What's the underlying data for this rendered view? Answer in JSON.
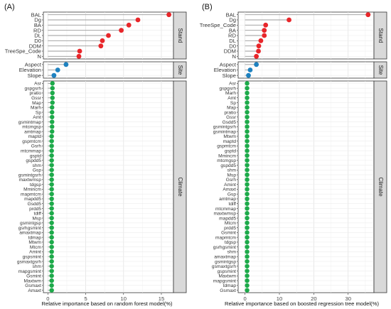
{
  "chart_data": [
    {
      "type": "scatter",
      "title": "(A)",
      "xlabel": "Relative importance based on random forest model(%)",
      "ylabel": "",
      "xlim": [
        -0.6,
        16.6
      ],
      "xticks": [
        0,
        5,
        10,
        15
      ],
      "grid": true,
      "panels": [
        {
          "name": "Stand",
          "color": "#e8262a",
          "points": [
            {
              "label": "BAL",
              "value": 16.0
            },
            {
              "label": "Dg",
              "value": 11.9
            },
            {
              "label": "BA",
              "value": 10.7
            },
            {
              "label": "RD",
              "value": 9.7
            },
            {
              "label": "DL",
              "value": 8.0
            },
            {
              "label": "D0",
              "value": 7.2
            },
            {
              "label": "DDM",
              "value": 7.0
            },
            {
              "label": "TreeSpe_Code",
              "value": 4.2
            },
            {
              "label": "N",
              "value": 4.1
            }
          ]
        },
        {
          "name": "Site",
          "color": "#1f82c0",
          "points": [
            {
              "label": "Aspect",
              "value": 2.4
            },
            {
              "label": "Elevation",
              "value": 1.3
            },
            {
              "label": "Slope",
              "value": 0.8
            }
          ]
        },
        {
          "name": "Climate",
          "color": "#1daa4a",
          "points": [
            {
              "label": "Asr",
              "value": 0.6
            },
            {
              "label": "gspgsrh",
              "value": 0.6
            },
            {
              "label": "pratio",
              "value": 0.6
            },
            {
              "label": "Gssr",
              "value": 0.6
            },
            {
              "label": "Map",
              "value": 0.6
            },
            {
              "label": "Marh",
              "value": 0.55
            },
            {
              "label": "Sp",
              "value": 0.55
            },
            {
              "label": "Amt",
              "value": 0.55
            },
            {
              "label": "gsmintmap",
              "value": 0.55
            },
            {
              "label": "mtcmgsp",
              "value": 0.55
            },
            {
              "label": "amtmap",
              "value": 0.55
            },
            {
              "label": "maptd",
              "value": 0.5
            },
            {
              "label": "gspmtcm",
              "value": 0.5
            },
            {
              "label": "Gsrh",
              "value": 0.5
            },
            {
              "label": "mtcmmap",
              "value": 0.5
            },
            {
              "label": "gsptd",
              "value": 0.5
            },
            {
              "label": "gspdd5",
              "value": 0.5
            },
            {
              "label": "shm",
              "value": 0.5
            },
            {
              "label": "Gsp",
              "value": 0.5
            },
            {
              "label": "gsmintgsrh",
              "value": 0.5
            },
            {
              "label": "maxtwmsp",
              "value": 0.5
            },
            {
              "label": "tdgsp",
              "value": 0.5
            },
            {
              "label": "Mmincm",
              "value": 0.5
            },
            {
              "label": "mapmtcm",
              "value": 0.5
            },
            {
              "label": "mapdd5",
              "value": 0.5
            },
            {
              "label": "Gsdd5",
              "value": 0.5
            },
            {
              "label": "prdd5",
              "value": 0.5
            },
            {
              "label": "tdiff",
              "value": 0.5
            },
            {
              "label": "Msp",
              "value": 0.5
            },
            {
              "label": "gsmintgsp",
              "value": 0.5
            },
            {
              "label": "gsrhgsmint",
              "value": 0.5
            },
            {
              "label": "amaxtmap",
              "value": 0.5
            },
            {
              "label": "tdmap",
              "value": 0.5
            },
            {
              "label": "Mtwm",
              "value": 0.5
            },
            {
              "label": "Mtcm",
              "value": 0.5
            },
            {
              "label": "Amint",
              "value": 0.5
            },
            {
              "label": "gspsmint",
              "value": 0.5
            },
            {
              "label": "gsmaxtgsrh",
              "value": 0.5
            },
            {
              "label": "shm",
              "value": 0.5
            },
            {
              "label": "mapgsmint",
              "value": 0.5
            },
            {
              "label": "Gsmint",
              "value": 0.5
            },
            {
              "label": "Maxtwm",
              "value": 0.5
            },
            {
              "label": "Gsmaxt",
              "value": 0.5
            },
            {
              "label": "Amaxt",
              "value": 0.5
            }
          ]
        }
      ]
    },
    {
      "type": "scatter",
      "title": "(B)",
      "xlabel": "Relative importance based on boosted regression tree model(%)",
      "ylabel": "",
      "xlim": [
        -2,
        37.5
      ],
      "xticks": [
        0,
        10,
        20,
        30
      ],
      "grid": true,
      "panels": [
        {
          "name": "Stand",
          "color": "#e8262a",
          "points": [
            {
              "label": "BAL",
              "value": 35.8
            },
            {
              "label": "Dg",
              "value": 12.8
            },
            {
              "label": "TreeSpe_Code",
              "value": 6.0
            },
            {
              "label": "BA",
              "value": 5.6
            },
            {
              "label": "RD",
              "value": 5.6
            },
            {
              "label": "DL",
              "value": 4.6
            },
            {
              "label": "D0",
              "value": 4.0
            },
            {
              "label": "DDM",
              "value": 3.9
            },
            {
              "label": "N",
              "value": 3.3
            }
          ]
        },
        {
          "name": "Site",
          "color": "#1f82c0",
          "points": [
            {
              "label": "Aspect",
              "value": 3.3
            },
            {
              "label": "Elevation",
              "value": 1.5
            },
            {
              "label": "Slope",
              "value": 1.0
            }
          ]
        },
        {
          "name": "Climate",
          "color": "#1daa4a",
          "points": [
            {
              "label": "Asr",
              "value": 0.6
            },
            {
              "label": "gspgsrh",
              "value": 0.6
            },
            {
              "label": "Marh",
              "value": 0.6
            },
            {
              "label": "Amt",
              "value": 0.6
            },
            {
              "label": "Sp",
              "value": 0.6
            },
            {
              "label": "Map",
              "value": 0.6
            },
            {
              "label": "pratio",
              "value": 0.6
            },
            {
              "label": "Gssr",
              "value": 0.6
            },
            {
              "label": "Gsdd5",
              "value": 0.6
            },
            {
              "label": "gsmintgsrh",
              "value": 0.6
            },
            {
              "label": "gsmintmap",
              "value": 0.6
            },
            {
              "label": "Mtwm",
              "value": 0.6
            },
            {
              "label": "maptd",
              "value": 0.6
            },
            {
              "label": "gspmtcm",
              "value": 0.6
            },
            {
              "label": "gsptd",
              "value": 0.6
            },
            {
              "label": "Mmincm",
              "value": 0.6
            },
            {
              "label": "mtcmgsp",
              "value": 0.6
            },
            {
              "label": "gspdd5",
              "value": 0.6
            },
            {
              "label": "shm",
              "value": 0.6
            },
            {
              "label": "Msp",
              "value": 0.6
            },
            {
              "label": "Gsrh",
              "value": 0.6
            },
            {
              "label": "Amint",
              "value": 0.6
            },
            {
              "label": "Amaxt",
              "value": 0.6
            },
            {
              "label": "Gsp",
              "value": 0.6
            },
            {
              "label": "amtmap",
              "value": 0.6
            },
            {
              "label": "tdiff",
              "value": 0.6
            },
            {
              "label": "mtcmmap",
              "value": 0.6
            },
            {
              "label": "maxtwmsp",
              "value": 0.6
            },
            {
              "label": "mapdd5",
              "value": 0.6
            },
            {
              "label": "Mtcm",
              "value": 0.6
            },
            {
              "label": "prdd5",
              "value": 0.6
            },
            {
              "label": "Gsmint",
              "value": 0.6
            },
            {
              "label": "mapmtcm",
              "value": 0.6
            },
            {
              "label": "tdgsp",
              "value": 0.6
            },
            {
              "label": "gsrhgsmint",
              "value": 0.6
            },
            {
              "label": "shm",
              "value": 0.6
            },
            {
              "label": "amaxtmap",
              "value": 0.6
            },
            {
              "label": "gsmintgsp",
              "value": 0.6
            },
            {
              "label": "gsmaxtgsrh",
              "value": 0.6
            },
            {
              "label": "gspsmint",
              "value": 0.6
            },
            {
              "label": "Maxtwm",
              "value": 0.6
            },
            {
              "label": "mapgsmint",
              "value": 0.6
            },
            {
              "label": "tdmap",
              "value": 0.6
            },
            {
              "label": "Gsmaxt",
              "value": 0.6
            }
          ]
        }
      ]
    }
  ]
}
